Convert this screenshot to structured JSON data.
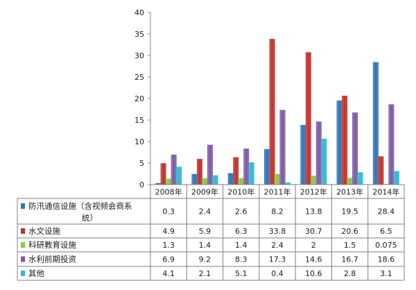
{
  "colors": {
    "series": [
      "#2e75b6",
      "#c0312b",
      "#8cc63e",
      "#7b5aa6",
      "#31b6d0"
    ],
    "grid": "#b8b8b8",
    "table_border": "#7f7f7f"
  },
  "chart_data": {
    "type": "bar",
    "categories": [
      "2008年",
      "2009年",
      "2010年",
      "2011年",
      "2012年",
      "2013年",
      "2014年"
    ],
    "series": [
      {
        "name": "防汛通信设施（含视频会商系统）",
        "name_lines": [
          "防汛通信设施（含视频会商系",
          "统）"
        ],
        "values": [
          0.3,
          2.4,
          2.6,
          8.2,
          13.8,
          19.5,
          28.4
        ]
      },
      {
        "name": "水文设施",
        "name_lines": [
          "水文设施"
        ],
        "values": [
          4.9,
          5.9,
          6.3,
          33.8,
          30.7,
          20.6,
          6.5
        ]
      },
      {
        "name": "科研教育设施",
        "name_lines": [
          "科研教育设施"
        ],
        "values": [
          1.3,
          1.4,
          1.4,
          2.4,
          2,
          1.5,
          0.075
        ]
      },
      {
        "name": "水利前期投资",
        "name_lines": [
          "水利前期投资"
        ],
        "values": [
          6.9,
          9.2,
          8.3,
          17.3,
          14.6,
          16.7,
          18.6
        ]
      },
      {
        "name": "其他",
        "name_lines": [
          "其他"
        ],
        "values": [
          4.1,
          2.1,
          5.1,
          0.4,
          10.6,
          2.8,
          3.1
        ]
      }
    ],
    "ylim": [
      0,
      40
    ],
    "yticks": [
      0,
      5,
      10,
      15,
      20,
      25,
      30,
      35,
      40
    ],
    "grid": false,
    "legend": "data-table"
  }
}
